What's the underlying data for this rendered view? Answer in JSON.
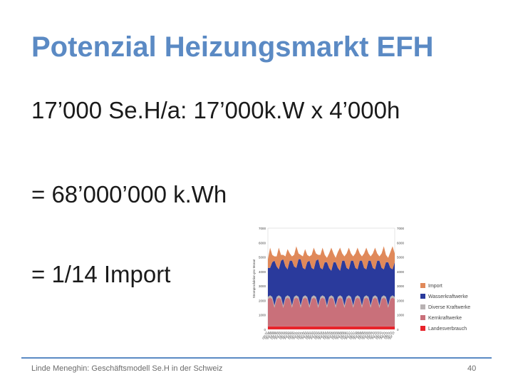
{
  "slide": {
    "title": "Potenzial Heizungsmarkt EFH",
    "bullets": [
      "17’000 Se.H/a: 17’000k.W x 4’000h",
      "= 68’000’000 k.Wh",
      "= 1/14 Import"
    ],
    "footer": "Linde Meneghin: Geschäftsmodell Se.H in der Schweiz",
    "page_number": "40"
  },
  "chart_data": {
    "type": "area",
    "stacked": true,
    "ylabel": "Stromproduktion pro Monat",
    "yticks_left": [
      "7000",
      "6000",
      "5000",
      "4000",
      "3000",
      "2000",
      "1000",
      "0"
    ],
    "yticks_right": [
      "7000",
      "6000",
      "5000",
      "4000",
      "3000",
      "2000",
      "1000",
      "0"
    ],
    "ylim": [
      0,
      7000
    ],
    "x": [
      "Okt 97",
      "Jan 98",
      "Apr 98",
      "Jul 98",
      "Okt 98",
      "Jan 99",
      "Apr 99",
      "Jul 99",
      "Okt 99",
      "Jan 00",
      "Apr 00",
      "Jul 00",
      "Okt 00",
      "Jan 01",
      "Apr 01",
      "Jul 01",
      "Okt 01",
      "Jan 02",
      "Apr 02",
      "Jul 02",
      "Okt 02",
      "Jan 03",
      "Apr 03",
      "Jul 03",
      "Okt 03",
      "Jan 04",
      "Apr 04",
      "Jul 04",
      "Okt 04",
      "Jan 05",
      "Apr 05",
      "Jul 05",
      "Okt 05",
      "Jan 06",
      "Apr 06",
      "Jul 06",
      "Okt 06",
      "Jan 07",
      "Apr 07",
      "Jul 07",
      "Okt 07",
      "Jan 08",
      "Apr 08",
      "Jul 08",
      "Okt 08",
      "Jan 09",
      "Apr 09",
      "Jul 09",
      "Okt 09",
      "Jan 10",
      "Apr 10",
      "Jul 10",
      "Okt 10",
      "Jan 11",
      "Apr 11",
      "Jul 11",
      "Okt 11",
      "Jan 12",
      "Apr 12"
    ],
    "series": [
      {
        "name": "Landesverbrauch",
        "color": "#e8232b",
        "values": [
          200,
          200,
          200,
          200,
          200,
          200,
          200,
          200,
          200,
          200,
          200,
          200,
          200,
          200,
          200,
          200,
          200,
          200,
          200,
          200,
          200,
          200,
          200,
          200,
          200,
          200,
          200,
          200,
          200,
          200,
          200,
          200,
          200,
          200,
          200,
          200,
          200,
          200,
          200,
          200,
          200,
          200,
          200,
          200,
          200,
          200,
          200,
          200,
          200,
          200,
          200,
          200,
          200,
          200,
          200,
          200,
          200,
          200,
          200
        ]
      },
      {
        "name": "Kernkraftwerke",
        "color": "#c9707a",
        "values": [
          1900,
          2000,
          1900,
          1300,
          1900,
          2000,
          1900,
          1300,
          1900,
          2000,
          1900,
          1300,
          1900,
          2000,
          1900,
          1300,
          1900,
          2000,
          1900,
          1300,
          1900,
          2000,
          1900,
          1300,
          1900,
          2000,
          1900,
          1300,
          1900,
          2000,
          1900,
          1300,
          1900,
          2000,
          1900,
          1300,
          1900,
          2000,
          1900,
          1300,
          1900,
          2000,
          1900,
          1300,
          1900,
          2000,
          1900,
          1300,
          1900,
          2000,
          1900,
          1300,
          1900,
          2000,
          1900,
          1300,
          1900,
          2000,
          1900
        ]
      },
      {
        "name": "Diverse Kraftwerke",
        "color": "#b8b2b3",
        "values": [
          150,
          150,
          150,
          150,
          150,
          150,
          150,
          150,
          150,
          150,
          150,
          150,
          150,
          150,
          150,
          150,
          150,
          150,
          150,
          150,
          150,
          150,
          150,
          150,
          150,
          150,
          150,
          150,
          150,
          150,
          150,
          150,
          150,
          150,
          150,
          150,
          150,
          150,
          150,
          150,
          150,
          150,
          150,
          150,
          150,
          150,
          150,
          150,
          150,
          150,
          150,
          150,
          150,
          150,
          150,
          150,
          150,
          150,
          150
        ]
      },
      {
        "name": "Wasserkraftwerke",
        "color": "#2a3a9c",
        "values": [
          2000,
          1900,
          2400,
          3100,
          2100,
          1800,
          2500,
          3200,
          2100,
          1800,
          2500,
          3100,
          2100,
          1900,
          2600,
          3200,
          2000,
          1800,
          2400,
          3100,
          2000,
          1800,
          2500,
          3200,
          2000,
          1800,
          2400,
          3000,
          2000,
          1700,
          2400,
          3000,
          2000,
          1700,
          2500,
          3100,
          2000,
          1800,
          2500,
          3100,
          2000,
          1800,
          2500,
          3100,
          2000,
          1800,
          2500,
          3100,
          2000,
          1800,
          2500,
          3100,
          2000,
          1800,
          2400,
          3000,
          2000,
          1800,
          2400
        ]
      },
      {
        "name": "Import",
        "color": "#e0895a",
        "values": [
          600,
          1400,
          500,
          300,
          700,
          1500,
          400,
          300,
          700,
          1400,
          500,
          300,
          800,
          1500,
          400,
          300,
          800,
          1400,
          500,
          300,
          900,
          1500,
          500,
          300,
          900,
          1500,
          500,
          300,
          1000,
          1600,
          600,
          300,
          1100,
          1600,
          500,
          300,
          1000,
          1500,
          500,
          300,
          1000,
          1500,
          500,
          300,
          1000,
          1500,
          500,
          300,
          1000,
          1500,
          500,
          300,
          1000,
          1600,
          500,
          300,
          1100,
          1600,
          600
        ]
      }
    ],
    "legend_position": "right"
  }
}
